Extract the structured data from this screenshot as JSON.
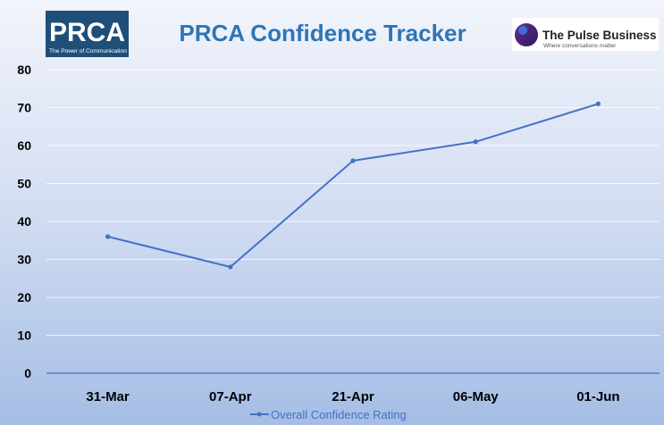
{
  "header": {
    "title": "PRCA Confidence Tracker",
    "left_logo": {
      "brand": "PRCA",
      "tagline": "The Power of Communication",
      "bg_color": "#1f4e79"
    },
    "right_logo": {
      "brand": "The Pulse Business",
      "tagline": "Where conversations matter",
      "mark_color": "#5b2c6f"
    }
  },
  "colors": {
    "line": "#4472c4",
    "title": "#2e75b6",
    "axis_text": "#000000",
    "legend_text": "#4472c4"
  },
  "chart_data": {
    "type": "line",
    "title": "PRCA Confidence Tracker",
    "categories": [
      "31-Mar",
      "07-Apr",
      "21-Apr",
      "06-May",
      "01-Jun"
    ],
    "series": [
      {
        "name": "Overall Confidence Rating",
        "values": [
          36,
          28,
          56,
          61,
          71
        ]
      }
    ],
    "ylim": [
      0,
      80
    ],
    "yticks": [
      0,
      10,
      20,
      30,
      40,
      50,
      60,
      70,
      80
    ],
    "grid": true,
    "legend": "bottom",
    "xlabel": "",
    "ylabel": ""
  }
}
